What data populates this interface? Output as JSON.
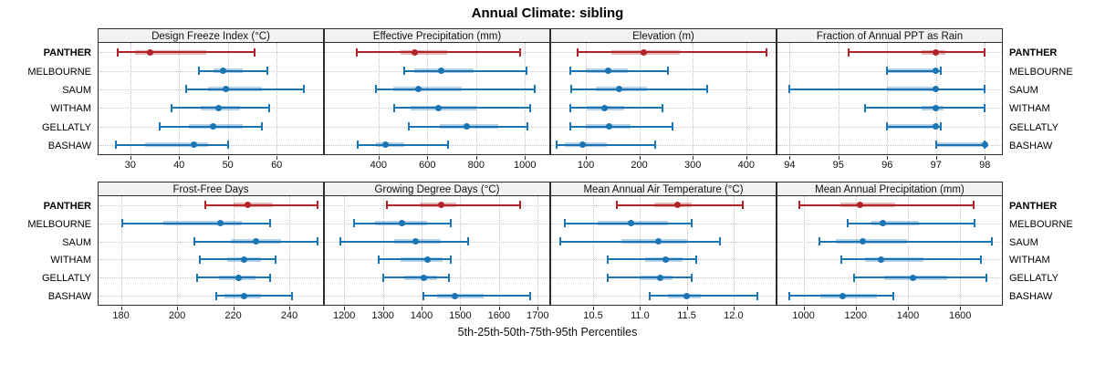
{
  "title": "Annual Climate: sibling",
  "xlabel": "5th-25th-50th-75th-95th Percentiles",
  "colors": {
    "highlight": "#b22428",
    "normal": "#1b74b4",
    "band_alpha": 0.32,
    "grid": "#c4c4c4",
    "header_bg": "#f2f2f2",
    "border": "#2e2e2e"
  },
  "stations": [
    {
      "label": "PANTHER",
      "highlight": true
    },
    {
      "label": "MELBOURNE",
      "highlight": false
    },
    {
      "label": "SAUM",
      "highlight": false
    },
    {
      "label": "WITHAM",
      "highlight": false
    },
    {
      "label": "GELLATLY",
      "highlight": false
    },
    {
      "label": "BASHAW",
      "highlight": false
    }
  ],
  "chart_data": {
    "type": "scatter",
    "subtype": "percentile-dot-whisker",
    "percentiles": [
      5,
      25,
      50,
      75,
      95
    ],
    "layout": {
      "rows": 2,
      "cols": 4,
      "grid": true,
      "y_categories_left_and_right": true
    },
    "panels": [
      {
        "title": "Design Freeze Index (°C)",
        "tick_values": [
          30,
          40,
          50,
          60
        ],
        "tick_labels": [
          "30",
          "40",
          "50",
          "60"
        ],
        "domain": [
          23.5,
          69.5
        ],
        "series": [
          {
            "name": "PANTHER",
            "values": [
              27.5,
              31,
              34,
              45.5,
              55.5
            ]
          },
          {
            "name": "MELBOURNE",
            "values": [
              44,
              47,
              49,
              53,
              58
            ]
          },
          {
            "name": "SAUM",
            "values": [
              41.5,
              46,
              49.5,
              57,
              65.5
            ]
          },
          {
            "name": "WITHAM",
            "values": [
              38.5,
              44.5,
              48,
              52.5,
              58.5
            ]
          },
          {
            "name": "GELLATLY",
            "values": [
              36,
              42,
              47,
              53,
              57
            ]
          },
          {
            "name": "BASHAW",
            "values": [
              27,
              33,
              43,
              46,
              50
            ]
          }
        ]
      },
      {
        "title": "Effective Precipitation (mm)",
        "tick_values": [
          400,
          600,
          800,
          1000
        ],
        "tick_labels": [
          "400",
          "600",
          "800",
          "1000"
        ],
        "domain": [
          180,
          1100
        ],
        "series": [
          {
            "name": "PANTHER",
            "values": [
              310,
              490,
              550,
              680,
              980
            ]
          },
          {
            "name": "MELBOURNE",
            "values": [
              505,
              545,
              655,
              790,
              1005
            ]
          },
          {
            "name": "SAUM",
            "values": [
              390,
              460,
              565,
              740,
              1040
            ]
          },
          {
            "name": "WITHAM",
            "values": [
              465,
              530,
              645,
              800,
              1020
            ]
          },
          {
            "name": "GELLATLY",
            "values": [
              525,
              650,
              760,
              890,
              1010
            ]
          },
          {
            "name": "BASHAW",
            "values": [
              315,
              390,
              430,
              505,
              685
            ]
          }
        ]
      },
      {
        "title": "Elevation (m)",
        "tick_values": [
          100,
          200,
          300,
          400
        ],
        "tick_labels": [
          "100",
          "200",
          "300",
          "400"
        ],
        "domain": [
          35,
          455
        ],
        "series": [
          {
            "name": "PANTHER",
            "values": [
              85,
              148,
              209,
              276,
              437
            ]
          },
          {
            "name": "MELBOURNE",
            "values": [
              71,
              100,
              141,
              178,
              254
            ]
          },
          {
            "name": "SAUM",
            "values": [
              72,
              118,
              162,
              215,
              327
            ]
          },
          {
            "name": "WITHAM",
            "values": [
              71,
              101,
              134,
              172,
              243
            ]
          },
          {
            "name": "GELLATLY",
            "values": [
              70,
              100,
              143,
              184,
              262
            ]
          },
          {
            "name": "BASHAW",
            "values": [
              45,
              60,
              93,
              140,
              229
            ]
          }
        ]
      },
      {
        "title": "Fraction of Annual PPT as Rain",
        "tick_values": [
          94,
          95,
          96,
          97,
          98
        ],
        "tick_labels": [
          "94",
          "95",
          "96",
          "97",
          "98"
        ],
        "domain": [
          93.75,
          98.35
        ],
        "series": [
          {
            "name": "PANTHER",
            "values": [
              95.2,
              96.7,
              97,
              97.2,
              98
            ]
          },
          {
            "name": "MELBOURNE",
            "values": [
              96,
              96,
              97,
              97,
              97.1
            ]
          },
          {
            "name": "SAUM",
            "values": [
              94,
              96,
              97,
              97,
              98
            ]
          },
          {
            "name": "WITHAM",
            "values": [
              95.55,
              96.7,
              97,
              97.15,
              98
            ]
          },
          {
            "name": "GELLATLY",
            "values": [
              96,
              96,
              97,
              97,
              97.1
            ]
          },
          {
            "name": "BASHAW",
            "values": [
              97,
              97,
              98,
              98,
              98
            ]
          }
        ]
      },
      {
        "title": "Frost-Free Days",
        "tick_values": [
          180,
          200,
          220,
          240
        ],
        "tick_labels": [
          "180",
          "200",
          "220",
          "240"
        ],
        "domain": [
          172,
          252
        ],
        "series": [
          {
            "name": "PANTHER",
            "values": [
              210,
              220,
              225,
              234,
              250
            ]
          },
          {
            "name": "MELBOURNE",
            "values": [
              180.5,
              195,
              215.5,
              223,
              233
            ]
          },
          {
            "name": "SAUM",
            "values": [
              206,
              219,
              228,
              237,
              250
            ]
          },
          {
            "name": "WITHAM",
            "values": [
              208,
              218,
              224,
              230,
              235
            ]
          },
          {
            "name": "GELLATLY",
            "values": [
              207,
              215,
              222,
              228,
              233
            ]
          },
          {
            "name": "BASHAW",
            "values": [
              214,
              217,
              224,
              230,
              241
            ]
          }
        ]
      },
      {
        "title": "Growing Degree Days (°C)",
        "tick_values": [
          1200,
          1300,
          1400,
          1500,
          1600,
          1700
        ],
        "tick_labels": [
          "1200",
          "1300",
          "1400",
          "1500",
          "1600",
          "1700"
        ],
        "domain": [
          1150,
          1730
        ],
        "series": [
          {
            "name": "PANTHER",
            "values": [
              1310,
              1395,
              1450,
              1490,
              1655
            ]
          },
          {
            "name": "MELBOURNE",
            "values": [
              1225,
              1280,
              1350,
              1415,
              1475
            ]
          },
          {
            "name": "SAUM",
            "values": [
              1190,
              1330,
              1385,
              1450,
              1520
            ]
          },
          {
            "name": "WITHAM",
            "values": [
              1290,
              1345,
              1415,
              1455,
              1475
            ]
          },
          {
            "name": "GELLATLY",
            "values": [
              1300,
              1355,
              1405,
              1440,
              1470
            ]
          },
          {
            "name": "BASHAW",
            "values": [
              1405,
              1440,
              1485,
              1560,
              1680
            ]
          }
        ]
      },
      {
        "title": "Mean Annual Air Temperature (°C)",
        "tick_values": [
          10.5,
          11.0,
          11.5,
          12.0
        ],
        "tick_labels": [
          "10.5",
          "11.0",
          "11.5",
          "12.0"
        ],
        "domain": [
          10.05,
          12.45
        ],
        "series": [
          {
            "name": "PANTHER",
            "values": [
              10.75,
              11.15,
              11.4,
              11.55,
              12.1
            ]
          },
          {
            "name": "MELBOURNE",
            "values": [
              10.2,
              10.55,
              10.9,
              11.3,
              11.55
            ]
          },
          {
            "name": "SAUM",
            "values": [
              10.15,
              10.8,
              11.2,
              11.5,
              11.85
            ]
          },
          {
            "name": "WITHAM",
            "values": [
              10.65,
              11.05,
              11.27,
              11.45,
              11.6
            ]
          },
          {
            "name": "GELLATLY",
            "values": [
              10.65,
              11.0,
              11.22,
              11.35,
              11.55
            ]
          },
          {
            "name": "BASHAW",
            "values": [
              11.1,
              11.3,
              11.5,
              11.65,
              12.25
            ]
          }
        ]
      },
      {
        "title": "Mean Annual Precipitation (mm)",
        "tick_values": [
          1000,
          1200,
          1400,
          1600
        ],
        "tick_labels": [
          "1000",
          "1200",
          "1400",
          "1600"
        ],
        "domain": [
          900,
          1760
        ],
        "series": [
          {
            "name": "PANTHER",
            "values": [
              985,
              1140,
              1215,
              1350,
              1650
            ]
          },
          {
            "name": "MELBOURNE",
            "values": [
              1170,
              1260,
              1305,
              1440,
              1655
            ]
          },
          {
            "name": "SAUM",
            "values": [
              1060,
              1125,
              1225,
              1395,
              1720
            ]
          },
          {
            "name": "WITHAM",
            "values": [
              1145,
              1235,
              1295,
              1460,
              1680
            ]
          },
          {
            "name": "GELLATLY",
            "values": [
              1195,
              1310,
              1420,
              1550,
              1700
            ]
          },
          {
            "name": "BASHAW",
            "values": [
              945,
              1065,
              1150,
              1280,
              1345
            ]
          }
        ]
      }
    ]
  }
}
